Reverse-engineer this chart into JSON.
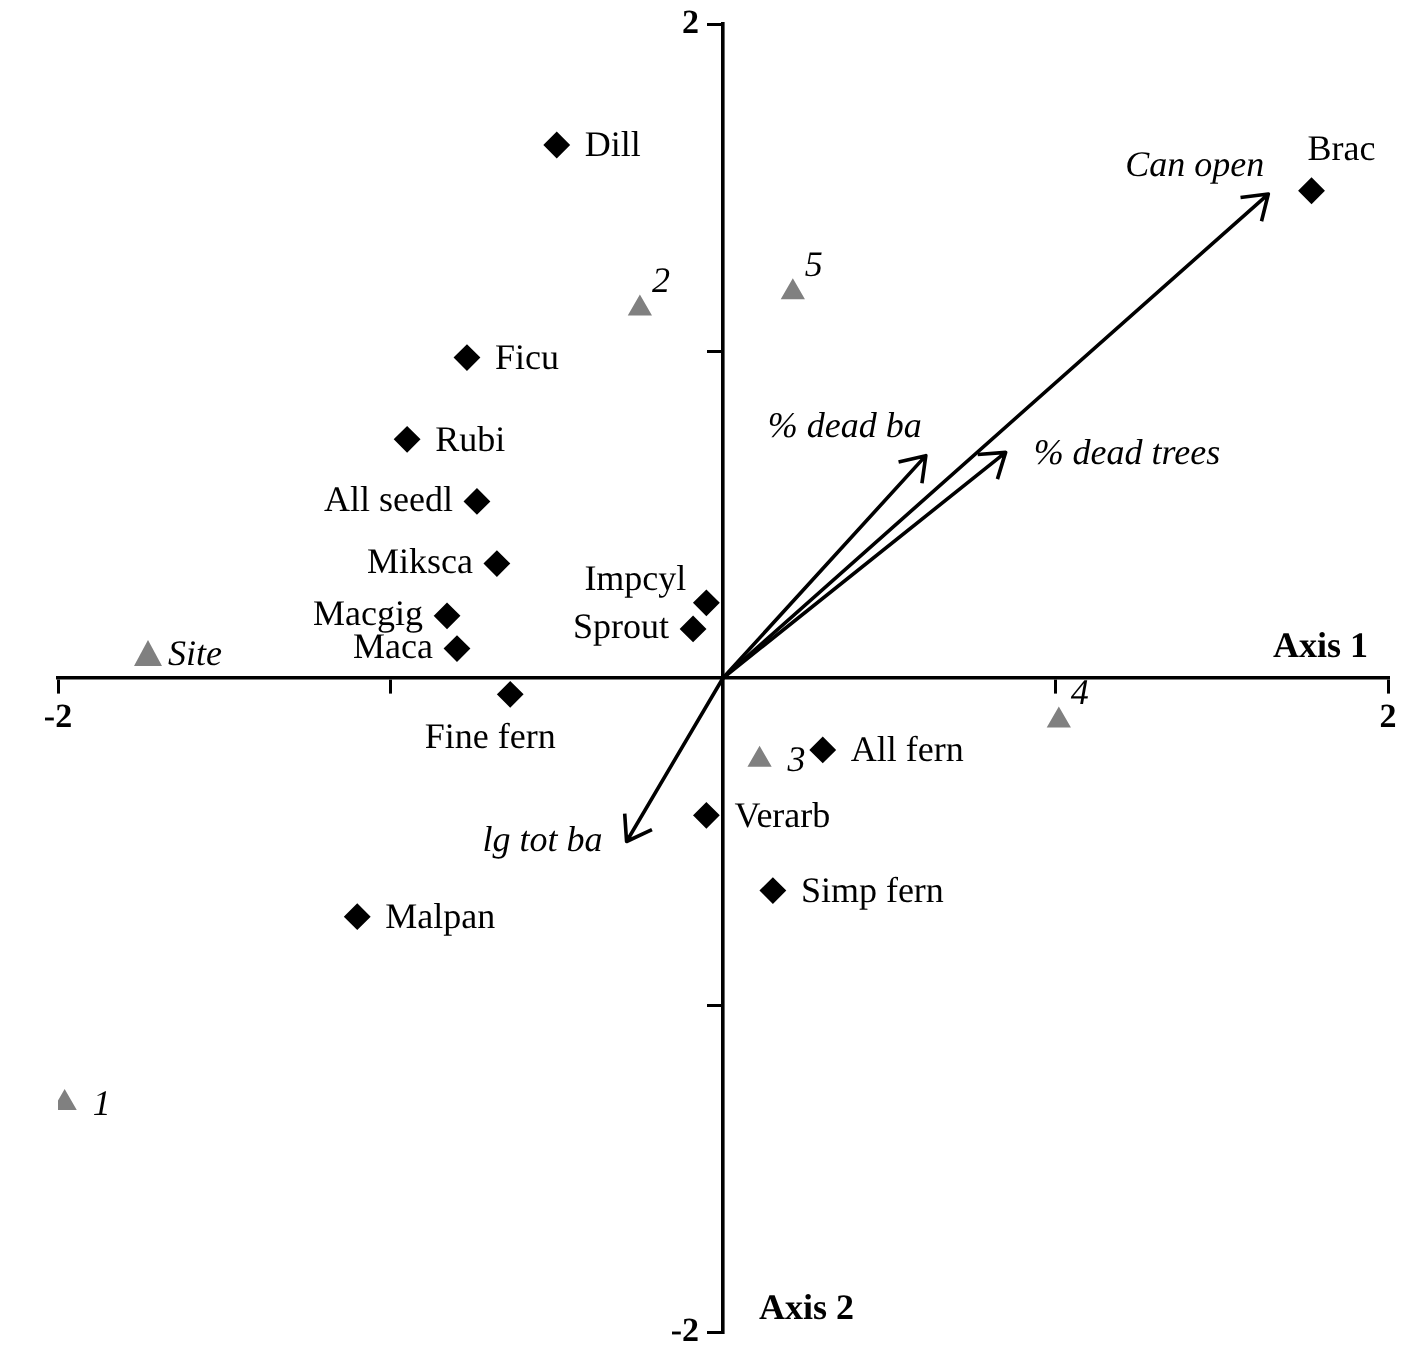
{
  "chart_data": {
    "type": "scatter",
    "xlabel": "Axis 1",
    "ylabel": "Axis 2",
    "xlim": [
      -2,
      2
    ],
    "ylim": [
      -2,
      2
    ],
    "xticks": [
      -2,
      {
        "value": -1,
        "label": null
      },
      {
        "value": 1,
        "label": null
      },
      2
    ],
    "yticks": [
      -2,
      {
        "value": -1,
        "label": null
      },
      {
        "value": 1,
        "label": null
      },
      2
    ],
    "grid": false,
    "legend": "left",
    "series": [
      {
        "marker": "diamond",
        "color": "#000000",
        "x": [
          -0.5,
          -0.77,
          -0.95,
          -0.74,
          -0.68,
          -0.83,
          -0.8,
          -0.09,
          -0.05,
          -0.64,
          0.3,
          -0.05,
          0.15,
          -1.1,
          1.77
        ],
        "values": [
          1.63,
          0.98,
          0.73,
          0.54,
          0.35,
          0.19,
          0.09,
          0.15,
          0.23,
          -0.05,
          -0.22,
          -0.42,
          -0.65,
          -0.73,
          1.49
        ]
      },
      {
        "name": "Site",
        "marker": "triangle",
        "color": "#808080",
        "x": [
          -0.25,
          0.21,
          0.11,
          1.01,
          -1.98
        ],
        "values": [
          1.13,
          1.18,
          -0.25,
          -0.13,
          -1.3
        ]
      }
    ],
    "annotations": [
      {
        "text": "Dill",
        "x": -0.5,
        "y": 1.63
      },
      {
        "text": "Ficu",
        "x": -0.77,
        "y": 0.98
      },
      {
        "text": "Rubi",
        "x": -0.95,
        "y": 0.73
      },
      {
        "text": "All seedl",
        "x": -0.74,
        "y": 0.54
      },
      {
        "text": "Miksca",
        "x": -0.68,
        "y": 0.35
      },
      {
        "text": "Macgig",
        "x": -0.83,
        "y": 0.19
      },
      {
        "text": "Maca",
        "x": -0.8,
        "y": 0.09
      },
      {
        "text": "Sprout",
        "x": -0.09,
        "y": 0.15
      },
      {
        "text": "Impcyl",
        "x": -0.05,
        "y": 0.23
      },
      {
        "text": "Fine fern",
        "x": -0.64,
        "y": -0.05
      },
      {
        "text": "All fern",
        "x": 0.3,
        "y": -0.22
      },
      {
        "text": "Verarb",
        "x": -0.05,
        "y": -0.42
      },
      {
        "text": "Simp fern",
        "x": 0.15,
        "y": -0.65
      },
      {
        "text": "Malpan",
        "x": -1.1,
        "y": -0.73
      },
      {
        "text": "Brac",
        "x": 1.77,
        "y": 1.49
      },
      {
        "text": "2",
        "x": -0.25,
        "y": 1.13
      },
      {
        "text": "5",
        "x": 0.21,
        "y": 1.18
      },
      {
        "text": "3",
        "x": 0.11,
        "y": -0.25
      },
      {
        "text": "4",
        "x": 1.01,
        "y": -0.13
      },
      {
        "text": "1",
        "x": -1.98,
        "y": -1.3
      },
      "Can open",
      "% dead ba",
      "% dead trees",
      "lg tot ba"
    ]
  }
}
